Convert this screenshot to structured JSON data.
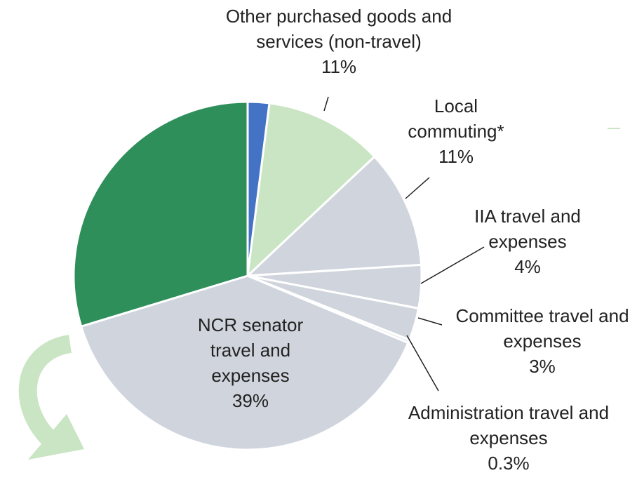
{
  "chart_data": {
    "type": "pie",
    "categories": [
      null,
      "Other purchased goods and services (non-travel)",
      "Local commuting*",
      "IIA travel and expenses",
      "Committee travel and expenses",
      "Administration travel and expenses",
      "NCR senator travel and expenses",
      null
    ],
    "values": [
      2,
      11,
      11,
      4,
      3,
      0.3,
      39,
      29.7
    ],
    "value_labels": [
      null,
      "11%",
      "11%",
      "4%",
      "3%",
      "0.3%",
      "39%",
      null
    ],
    "colors": [
      "#4472c4",
      "#c9e5c3",
      "#d0d5dd",
      "#d0d5dd",
      "#d0d5dd",
      "#e6e9ee",
      "#d0d5dd",
      "#2e8f5a"
    ]
  }
}
